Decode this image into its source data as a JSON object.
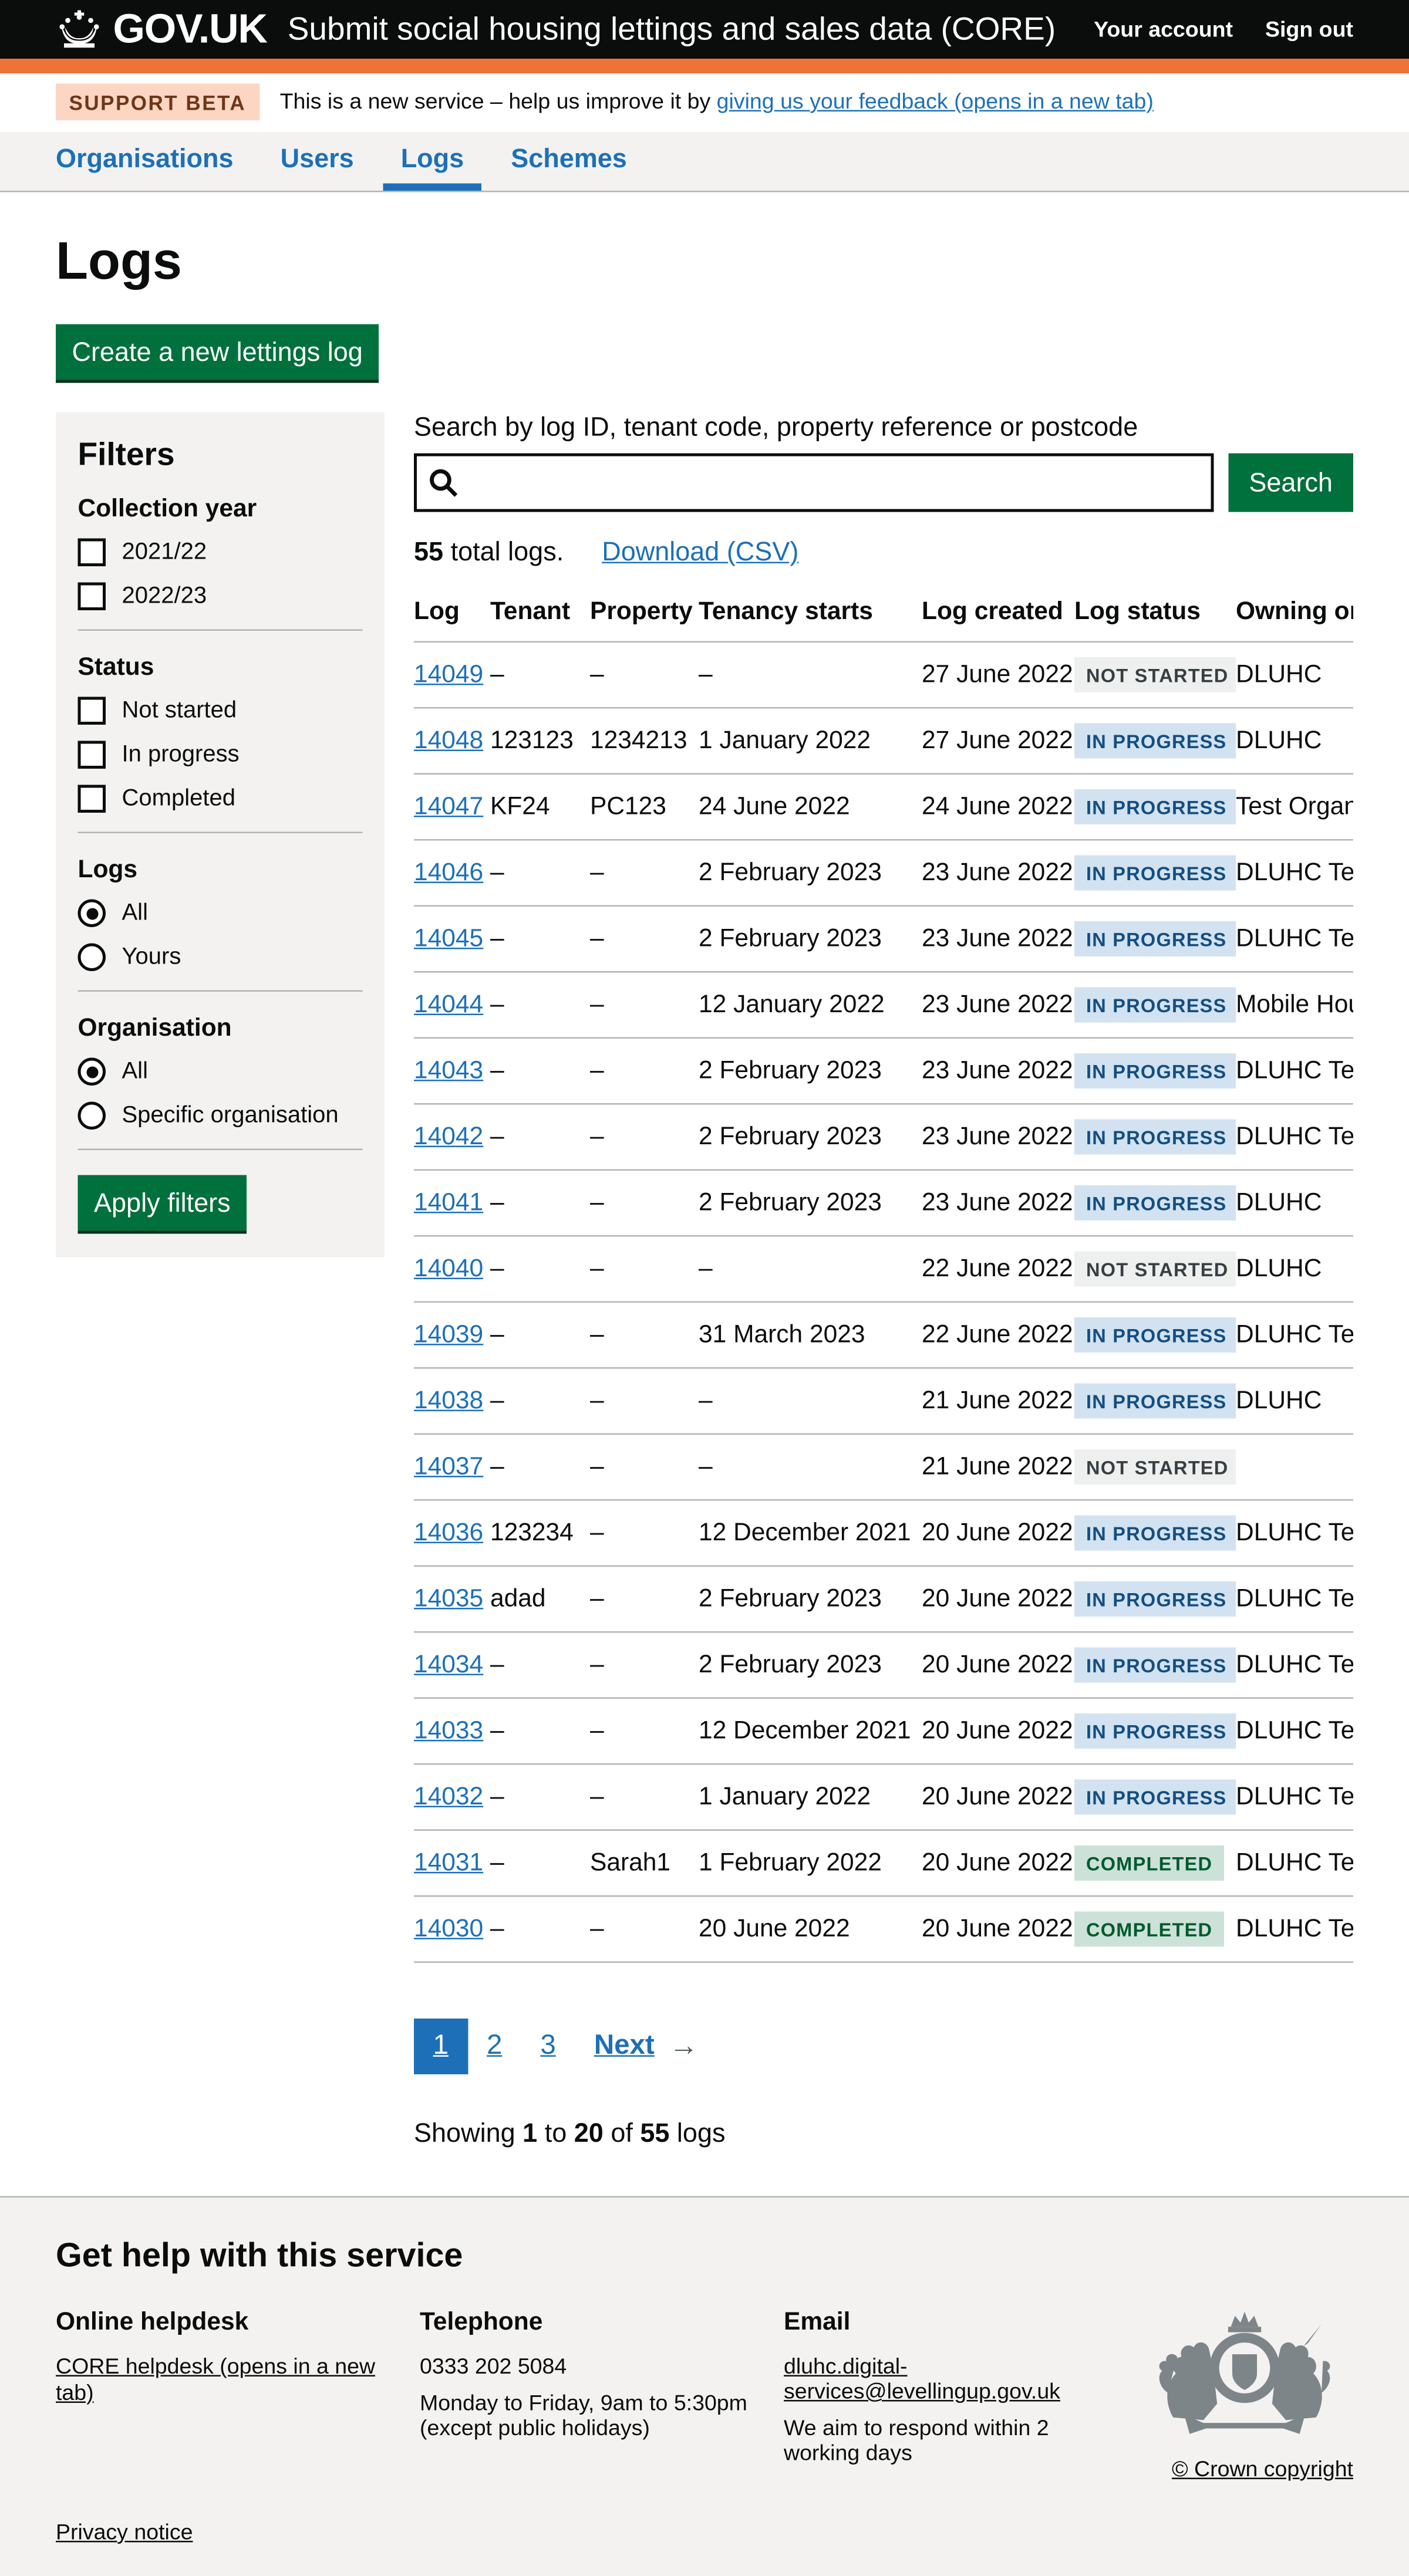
{
  "colors": {
    "black": "#0b0c0c",
    "brand_orange": "#ed7336",
    "beta_tag_bg": "#fcd6c3",
    "beta_tag_text": "#6e3619",
    "link_blue": "#1d70b8",
    "button_green": "#00703c",
    "button_green_shadow": "#002d18",
    "grey_bg": "#f3f2f1",
    "border_grey": "#b1b4b6",
    "tag_blue_bg": "#d2e2f1",
    "tag_blue_text": "#144e81",
    "tag_grey_bg": "#eeefef",
    "tag_grey_text": "#383f43",
    "tag_green_bg": "#cce2d8",
    "tag_green_text": "#005a30",
    "text_secondary": "#505a5f",
    "crest_grey": "#7d8589"
  },
  "header": {
    "logo_text": "GOV.UK",
    "service_name": "Submit social housing lettings and sales data (CORE)",
    "account_link": "Your account",
    "signout_link": "Sign out"
  },
  "phase_banner": {
    "tag": "SUPPORT BETA",
    "text": "This is a new service – help us improve it by ",
    "link": "giving us your feedback (opens in a new tab)"
  },
  "nav": {
    "items": [
      {
        "label": "Organisations",
        "active": false
      },
      {
        "label": "Users",
        "active": false
      },
      {
        "label": "Logs",
        "active": true
      },
      {
        "label": "Schemes",
        "active": false
      }
    ]
  },
  "page": {
    "title": "Logs",
    "create_button": "Create a new lettings log"
  },
  "filters": {
    "title": "Filters",
    "apply_button": "Apply filters",
    "groups": [
      {
        "label": "Collection year",
        "type": "checkbox",
        "options": [
          {
            "label": "2021/22",
            "checked": false
          },
          {
            "label": "2022/23",
            "checked": false
          }
        ]
      },
      {
        "label": "Status",
        "type": "checkbox",
        "options": [
          {
            "label": "Not started",
            "checked": false
          },
          {
            "label": "In progress",
            "checked": false
          },
          {
            "label": "Completed",
            "checked": false
          }
        ]
      },
      {
        "label": "Logs",
        "type": "radio",
        "options": [
          {
            "label": "All",
            "checked": true
          },
          {
            "label": "Yours",
            "checked": false
          }
        ]
      },
      {
        "label": "Organisation",
        "type": "radio",
        "options": [
          {
            "label": "All",
            "checked": true
          },
          {
            "label": "Specific organisation",
            "checked": false
          }
        ]
      }
    ]
  },
  "search": {
    "label": "Search by log ID, tenant code, property reference or postcode",
    "value": "",
    "button": "Search"
  },
  "results": {
    "total": "55",
    "total_suffix": " total logs.",
    "download_link": "Download (CSV)"
  },
  "table": {
    "columns": [
      "Log",
      "Tenant",
      "Property",
      "Tenancy starts",
      "Log created",
      "Log status",
      "Owning organisation"
    ],
    "rows": [
      {
        "log": "14049",
        "tenant": "–",
        "property": "–",
        "tenancy_starts": "–",
        "log_created": "27 June 2022",
        "status": "NOT STARTED",
        "owning_org": "DLUHC"
      },
      {
        "log": "14048",
        "tenant": "123123",
        "property": "1234213",
        "tenancy_starts": "1 January 2022",
        "log_created": "27 June 2022",
        "status": "IN PROGRESS",
        "owning_org": "DLUHC"
      },
      {
        "log": "14047",
        "tenant": "KF24",
        "property": "PC123",
        "tenancy_starts": "24 June 2022",
        "log_created": "24 June 2022",
        "status": "IN PROGRESS",
        "owning_org": "Test Organisation"
      },
      {
        "log": "14046",
        "tenant": "–",
        "property": "–",
        "tenancy_starts": "2 February 2023",
        "log_created": "23 June 2022",
        "status": "IN PROGRESS",
        "owning_org": "DLUHC Test"
      },
      {
        "log": "14045",
        "tenant": "–",
        "property": "–",
        "tenancy_starts": "2 February 2023",
        "log_created": "23 June 2022",
        "status": "IN PROGRESS",
        "owning_org": "DLUHC Test"
      },
      {
        "log": "14044",
        "tenant": "–",
        "property": "–",
        "tenancy_starts": "12 January 2022",
        "log_created": "23 June 2022",
        "status": "IN PROGRESS",
        "owning_org": "Mobile Housing"
      },
      {
        "log": "14043",
        "tenant": "–",
        "property": "–",
        "tenancy_starts": "2 February 2023",
        "log_created": "23 June 2022",
        "status": "IN PROGRESS",
        "owning_org": "DLUHC Test"
      },
      {
        "log": "14042",
        "tenant": "–",
        "property": "–",
        "tenancy_starts": "2 February 2023",
        "log_created": "23 June 2022",
        "status": "IN PROGRESS",
        "owning_org": "DLUHC Test"
      },
      {
        "log": "14041",
        "tenant": "–",
        "property": "–",
        "tenancy_starts": "2 February 2023",
        "log_created": "23 June 2022",
        "status": "IN PROGRESS",
        "owning_org": "DLUHC"
      },
      {
        "log": "14040",
        "tenant": "–",
        "property": "–",
        "tenancy_starts": "–",
        "log_created": "22 June 2022",
        "status": "NOT STARTED",
        "owning_org": "DLUHC"
      },
      {
        "log": "14039",
        "tenant": "–",
        "property": "–",
        "tenancy_starts": "31 March 2023",
        "log_created": "22 June 2022",
        "status": "IN PROGRESS",
        "owning_org": "DLUHC Test"
      },
      {
        "log": "14038",
        "tenant": "–",
        "property": "–",
        "tenancy_starts": "–",
        "log_created": "21 June 2022",
        "status": "IN PROGRESS",
        "owning_org": "DLUHC"
      },
      {
        "log": "14037",
        "tenant": "–",
        "property": "–",
        "tenancy_starts": "–",
        "log_created": "21 June 2022",
        "status": "NOT STARTED",
        "owning_org": ""
      },
      {
        "log": "14036",
        "tenant": "123234",
        "property": "–",
        "tenancy_starts": "12 December 2021",
        "log_created": "20 June 2022",
        "status": "IN PROGRESS",
        "owning_org": "DLUHC Test"
      },
      {
        "log": "14035",
        "tenant": "adad",
        "property": "–",
        "tenancy_starts": "2 February 2023",
        "log_created": "20 June 2022",
        "status": "IN PROGRESS",
        "owning_org": "DLUHC Test"
      },
      {
        "log": "14034",
        "tenant": "–",
        "property": "–",
        "tenancy_starts": "2 February 2023",
        "log_created": "20 June 2022",
        "status": "IN PROGRESS",
        "owning_org": "DLUHC Test"
      },
      {
        "log": "14033",
        "tenant": "–",
        "property": "–",
        "tenancy_starts": "12 December 2021",
        "log_created": "20 June 2022",
        "status": "IN PROGRESS",
        "owning_org": "DLUHC Test"
      },
      {
        "log": "14032",
        "tenant": "–",
        "property": "–",
        "tenancy_starts": "1 January 2022",
        "log_created": "20 June 2022",
        "status": "IN PROGRESS",
        "owning_org": "DLUHC Test"
      },
      {
        "log": "14031",
        "tenant": "–",
        "property": "Sarah1",
        "tenancy_starts": "1 February 2022",
        "log_created": "20 June 2022",
        "status": "COMPLETED",
        "owning_org": "DLUHC Test"
      },
      {
        "log": "14030",
        "tenant": "–",
        "property": "–",
        "tenancy_starts": "20 June 2022",
        "log_created": "20 June 2022",
        "status": "COMPLETED",
        "owning_org": "DLUHC Test"
      }
    ]
  },
  "pagination": {
    "current": "1",
    "pages": [
      "2",
      "3"
    ],
    "next": "Next",
    "arrow": "→",
    "showing": {
      "prefix": "Showing ",
      "from": "1",
      "mid1": " to ",
      "to": "20",
      "mid2": " of ",
      "total": "55",
      "suffix": " logs"
    }
  },
  "footer": {
    "title": "Get help with this service",
    "helpdesk": {
      "heading": "Online helpdesk",
      "link": "CORE helpdesk (opens in a new tab)"
    },
    "telephone": {
      "heading": "Telephone",
      "number": "0333 202 5084",
      "hours1": "Monday to Friday, 9am to 5:30pm",
      "hours2": "(except public holidays)"
    },
    "email": {
      "heading": "Email",
      "address": "dluhc.digital-services@levellingup.gov.uk",
      "note": "We aim to respond within 2 working days"
    },
    "copyright": "© Crown copyright",
    "privacy": "Privacy notice"
  }
}
